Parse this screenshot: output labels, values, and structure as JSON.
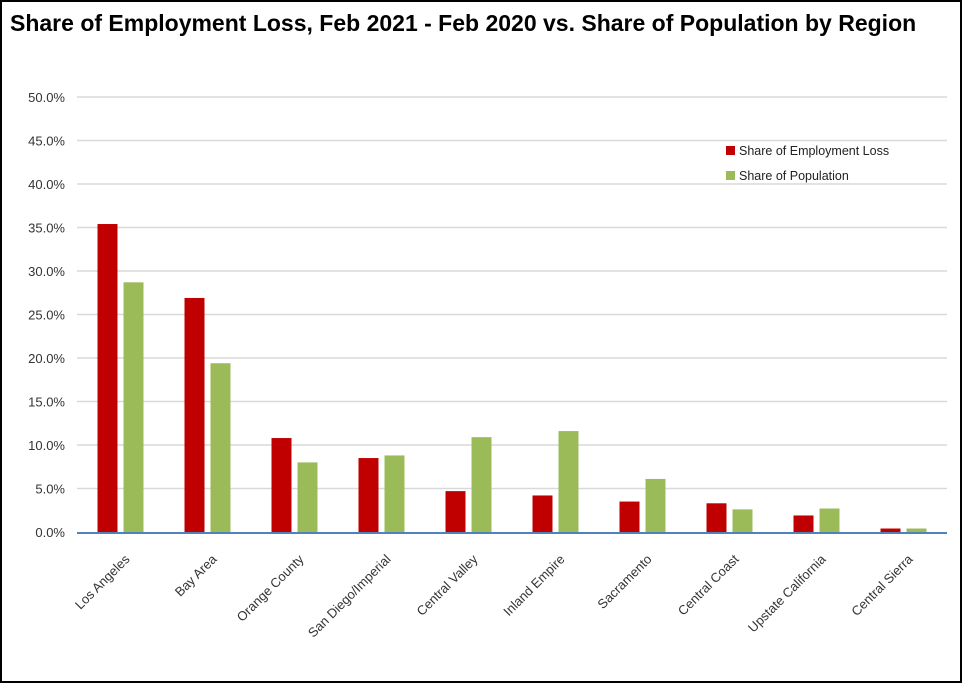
{
  "chart_data": {
    "type": "bar",
    "title": "Share of Employment Loss, Feb 2021 - Feb 2020 vs. Share of Population by Region",
    "xlabel": "",
    "ylabel": "",
    "ylim": [
      0,
      50
    ],
    "yticks": [
      "0.0%",
      "5.0%",
      "10.0%",
      "15.0%",
      "20.0%",
      "25.0%",
      "30.0%",
      "35.0%",
      "40.0%",
      "45.0%",
      "50.0%"
    ],
    "grid": true,
    "legend_position": "top-right",
    "categories": [
      "Los Angeles",
      "Bay Area",
      "Orange County",
      "San Diego/Imperial",
      "Central Valley",
      "Inland Empire",
      "Sacramento",
      "Central Coast",
      "Upstate California",
      "Central Sierra"
    ],
    "series": [
      {
        "name": "Share of Employment Loss",
        "color": "#c00000",
        "values": [
          35.4,
          26.9,
          10.8,
          8.5,
          4.7,
          4.2,
          3.5,
          3.3,
          1.9,
          0.4
        ]
      },
      {
        "name": "Share of Population",
        "color": "#9bbb59",
        "values": [
          28.7,
          19.4,
          8.0,
          8.8,
          10.9,
          11.6,
          6.1,
          2.6,
          2.7,
          0.4
        ]
      }
    ]
  }
}
